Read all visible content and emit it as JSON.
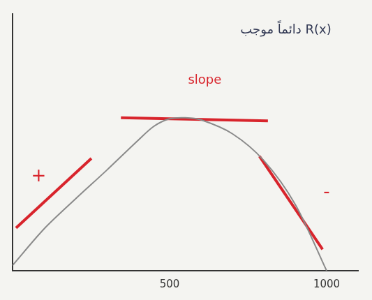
{
  "chart_data": {
    "type": "line",
    "x": [
      0,
      100,
      200,
      300,
      400,
      450,
      500,
      550,
      600,
      700,
      800,
      900,
      1000
    ],
    "values": [
      5,
      39,
      67,
      94,
      122,
      135,
      142,
      143,
      141,
      128,
      103,
      62,
      0
    ],
    "color": "#8a8a8a",
    "xlim": [
      0,
      1100
    ],
    "xticks": [
      500,
      1000
    ],
    "ylim": [
      0,
      240
    ],
    "grid": false,
    "tick_labels": "x",
    "tangent_lines": [
      {
        "x": [
          11,
          251
        ],
        "y": [
          40,
          105
        ],
        "color": "#d8242c"
      },
      {
        "x": [
          345,
          813
        ],
        "y": [
          143,
          140
        ],
        "color": "#d8242c"
      },
      {
        "x": [
          786,
          987
        ],
        "y": [
          107,
          20
        ],
        "color": "#d8242c"
      }
    ],
    "annotations": [
      {
        "text": "+",
        "x": 83,
        "y": 88,
        "color": "#d8242c"
      },
      {
        "text": "slope",
        "x": 612,
        "y": 178,
        "color": "#d8242c"
      },
      {
        "text": "-",
        "x": 1000,
        "y": 73,
        "color": "#d8242c"
      },
      {
        "text": "R(x) دائماً موجب",
        "x": 870,
        "y": 225,
        "color": "#333a55"
      }
    ]
  }
}
